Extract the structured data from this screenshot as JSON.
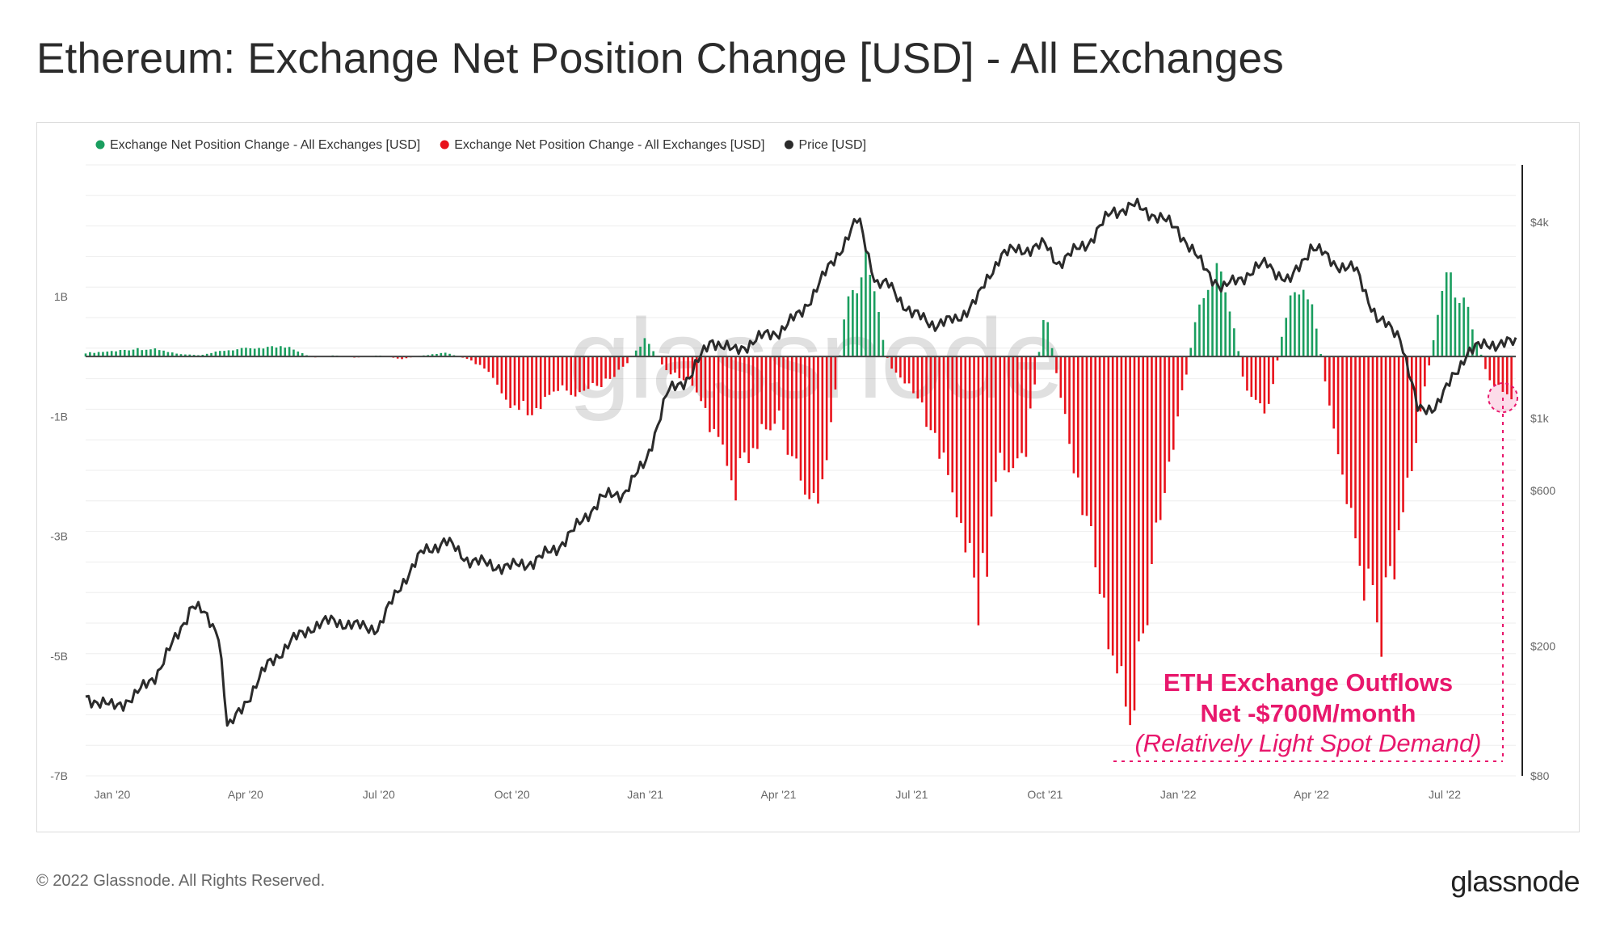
{
  "title": "Ethereum: Exchange Net Position Change [USD] - All Exchanges",
  "footer": {
    "copyright": "© 2022 Glassnode. All Rights Reserved.",
    "logo": "glassnode"
  },
  "watermark": "glassnode",
  "colors": {
    "positive": "#1a9e5f",
    "negative": "#e8121b",
    "price": "#2b2b2b",
    "annotation": "#e8176c"
  },
  "annotation": {
    "line1": "ETH Exchange Outflows",
    "line2": "Net -$700M/month",
    "line3": "(Relatively Light Spot Demand)"
  },
  "chart_data": {
    "type": "bar",
    "title": "Ethereum: Exchange Net Position Change [USD] - All Exchanges",
    "legend": {
      "placement": "top-left",
      "entries": [
        {
          "label": "Exchange Net Position Change - All Exchanges [USD]",
          "color": "#1a9e5f"
        },
        {
          "label": "Exchange Net Position Change - All Exchanges [USD]",
          "color": "#e8121b"
        },
        {
          "label": "Price [USD]",
          "color": "#2b2b2b"
        }
      ]
    },
    "x_ticks": [
      "Jan '20",
      "Apr '20",
      "Jul '20",
      "Oct '20",
      "Jan '21",
      "Apr '21",
      "Jul '21",
      "Oct '21",
      "Jan '22",
      "Apr '22",
      "Jul '22"
    ],
    "x_tick_months": [
      0,
      3,
      6,
      9,
      12,
      15,
      18,
      21,
      24,
      27,
      30
    ],
    "x_range_months": [
      -0.6,
      31.6
    ],
    "y_left": {
      "ticks": [
        1,
        -1,
        -3,
        -5,
        -7
      ],
      "tick_labels": [
        "1B",
        "-1B",
        "-3B",
        "-5B",
        "-7B"
      ],
      "range": [
        -7,
        3.2
      ],
      "unit": "B USD"
    },
    "y_right": {
      "scale": "log",
      "ticks": [
        4000,
        1000,
        600,
        200,
        80
      ],
      "tick_labels": [
        "$4k",
        "$1k",
        "$600",
        "$200",
        "$80"
      ],
      "range": [
        80,
        6000
      ]
    },
    "grid": true,
    "series": [
      {
        "name": "Exchange Net Position Change - All Exchanges [USD]",
        "kind": "bars",
        "unit": "B USD",
        "points": [
          {
            "m": -0.6,
            "v": 0.06
          },
          {
            "m": 0.0,
            "v": 0.09
          },
          {
            "m": 0.5,
            "v": 0.13
          },
          {
            "m": 1.0,
            "v": 0.12
          },
          {
            "m": 1.5,
            "v": 0.04
          },
          {
            "m": 2.0,
            "v": 0.02
          },
          {
            "m": 2.5,
            "v": 0.1
          },
          {
            "m": 3.0,
            "v": 0.13
          },
          {
            "m": 3.5,
            "v": 0.16
          },
          {
            "m": 4.0,
            "v": 0.16
          },
          {
            "m": 4.5,
            "v": -0.02
          },
          {
            "m": 5.0,
            "v": 0.02
          },
          {
            "m": 5.5,
            "v": -0.02
          },
          {
            "m": 6.0,
            "v": 0.02
          },
          {
            "m": 6.5,
            "v": -0.04
          },
          {
            "m": 7.0,
            "v": 0.02
          },
          {
            "m": 7.5,
            "v": 0.06
          },
          {
            "m": 8.0,
            "v": -0.04
          },
          {
            "m": 8.5,
            "v": -0.25
          },
          {
            "m": 9.0,
            "v": -0.8
          },
          {
            "m": 9.5,
            "v": -0.9
          },
          {
            "m": 10.0,
            "v": -0.5
          },
          {
            "m": 10.5,
            "v": -0.6
          },
          {
            "m": 11.0,
            "v": -0.45
          },
          {
            "m": 11.5,
            "v": -0.2
          },
          {
            "m": 12.0,
            "v": 0.3
          },
          {
            "m": 12.5,
            "v": -0.25
          },
          {
            "m": 13.0,
            "v": -0.4
          },
          {
            "m": 13.5,
            "v": -1.2
          },
          {
            "m": 14.0,
            "v": -2.2
          },
          {
            "m": 14.5,
            "v": -1.4
          },
          {
            "m": 15.0,
            "v": -1.0
          },
          {
            "m": 15.5,
            "v": -2.1
          },
          {
            "m": 16.0,
            "v": -2.4
          },
          {
            "m": 16.5,
            "v": 0.8
          },
          {
            "m": 17.0,
            "v": 1.6
          },
          {
            "m": 17.5,
            "v": -0.2
          },
          {
            "m": 18.0,
            "v": -0.5
          },
          {
            "m": 18.5,
            "v": -1.3
          },
          {
            "m": 19.0,
            "v": -2.4
          },
          {
            "m": 19.5,
            "v": -4.2
          },
          {
            "m": 20.0,
            "v": -1.7
          },
          {
            "m": 20.5,
            "v": -1.9
          },
          {
            "m": 21.0,
            "v": 0.8
          },
          {
            "m": 21.5,
            "v": -1.3
          },
          {
            "m": 22.0,
            "v": -2.9
          },
          {
            "m": 22.5,
            "v": -4.8
          },
          {
            "m": 23.0,
            "v": -6.0
          },
          {
            "m": 23.5,
            "v": -3.2
          },
          {
            "m": 24.0,
            "v": -1.0
          },
          {
            "m": 24.5,
            "v": 1.0
          },
          {
            "m": 25.0,
            "v": 1.5
          },
          {
            "m": 25.5,
            "v": -0.5
          },
          {
            "m": 26.0,
            "v": -1.0
          },
          {
            "m": 26.5,
            "v": 1.0
          },
          {
            "m": 27.0,
            "v": 1.0
          },
          {
            "m": 27.5,
            "v": -1.3
          },
          {
            "m": 28.0,
            "v": -3.3
          },
          {
            "m": 28.5,
            "v": -4.8
          },
          {
            "m": 29.0,
            "v": -2.8
          },
          {
            "m": 29.5,
            "v": -0.8
          },
          {
            "m": 30.0,
            "v": 1.4
          },
          {
            "m": 30.5,
            "v": 0.8
          },
          {
            "m": 31.0,
            "v": -0.4
          },
          {
            "m": 31.6,
            "v": -0.7
          }
        ]
      },
      {
        "name": "Price [USD]",
        "kind": "line",
        "axis": "right",
        "points": [
          {
            "m": -0.6,
            "v": 140
          },
          {
            "m": 0.0,
            "v": 130
          },
          {
            "m": 0.5,
            "v": 140
          },
          {
            "m": 1.0,
            "v": 165
          },
          {
            "m": 1.5,
            "v": 220
          },
          {
            "m": 1.8,
            "v": 270
          },
          {
            "m": 2.0,
            "v": 255
          },
          {
            "m": 2.4,
            "v": 220
          },
          {
            "m": 2.6,
            "v": 110
          },
          {
            "m": 3.0,
            "v": 135
          },
          {
            "m": 3.5,
            "v": 175
          },
          {
            "m": 4.0,
            "v": 205
          },
          {
            "m": 4.5,
            "v": 230
          },
          {
            "m": 5.0,
            "v": 240
          },
          {
            "m": 5.5,
            "v": 230
          },
          {
            "m": 6.0,
            "v": 228
          },
          {
            "m": 6.5,
            "v": 310
          },
          {
            "m": 7.0,
            "v": 390
          },
          {
            "m": 7.5,
            "v": 420
          },
          {
            "m": 8.0,
            "v": 370
          },
          {
            "m": 8.5,
            "v": 355
          },
          {
            "m": 9.0,
            "v": 350
          },
          {
            "m": 9.5,
            "v": 365
          },
          {
            "m": 10.0,
            "v": 400
          },
          {
            "m": 10.5,
            "v": 470
          },
          {
            "m": 11.0,
            "v": 570
          },
          {
            "m": 11.5,
            "v": 590
          },
          {
            "m": 12.0,
            "v": 730
          },
          {
            "m": 12.5,
            "v": 1200
          },
          {
            "m": 13.0,
            "v": 1350
          },
          {
            "m": 13.5,
            "v": 1750
          },
          {
            "m": 14.0,
            "v": 1600
          },
          {
            "m": 14.5,
            "v": 1750
          },
          {
            "m": 15.0,
            "v": 1850
          },
          {
            "m": 15.5,
            "v": 2100
          },
          {
            "m": 16.0,
            "v": 2700
          },
          {
            "m": 16.5,
            "v": 3500
          },
          {
            "m": 16.8,
            "v": 4100
          },
          {
            "m": 17.2,
            "v": 2600
          },
          {
            "m": 17.5,
            "v": 2550
          },
          {
            "m": 18.0,
            "v": 2100
          },
          {
            "m": 18.5,
            "v": 1950
          },
          {
            "m": 19.0,
            "v": 2000
          },
          {
            "m": 19.5,
            "v": 2350
          },
          {
            "m": 20.0,
            "v": 3200
          },
          {
            "m": 20.5,
            "v": 3300
          },
          {
            "m": 21.0,
            "v": 3400
          },
          {
            "m": 21.3,
            "v": 3000
          },
          {
            "m": 22.0,
            "v": 3500
          },
          {
            "m": 22.5,
            "v": 4300
          },
          {
            "m": 23.0,
            "v": 4500
          },
          {
            "m": 23.5,
            "v": 4200
          },
          {
            "m": 24.0,
            "v": 3800
          },
          {
            "m": 24.5,
            "v": 3000
          },
          {
            "m": 25.0,
            "v": 2500
          },
          {
            "m": 25.5,
            "v": 2750
          },
          {
            "m": 26.0,
            "v": 3000
          },
          {
            "m": 26.5,
            "v": 2600
          },
          {
            "m": 27.0,
            "v": 3400
          },
          {
            "m": 27.5,
            "v": 3000
          },
          {
            "m": 28.0,
            "v": 2850
          },
          {
            "m": 28.5,
            "v": 2000
          },
          {
            "m": 29.0,
            "v": 1800
          },
          {
            "m": 29.4,
            "v": 1050
          },
          {
            "m": 29.8,
            "v": 1100
          },
          {
            "m": 30.0,
            "v": 1200
          },
          {
            "m": 30.5,
            "v": 1600
          },
          {
            "m": 31.0,
            "v": 1700
          },
          {
            "m": 31.6,
            "v": 1700
          }
        ]
      }
    ]
  }
}
